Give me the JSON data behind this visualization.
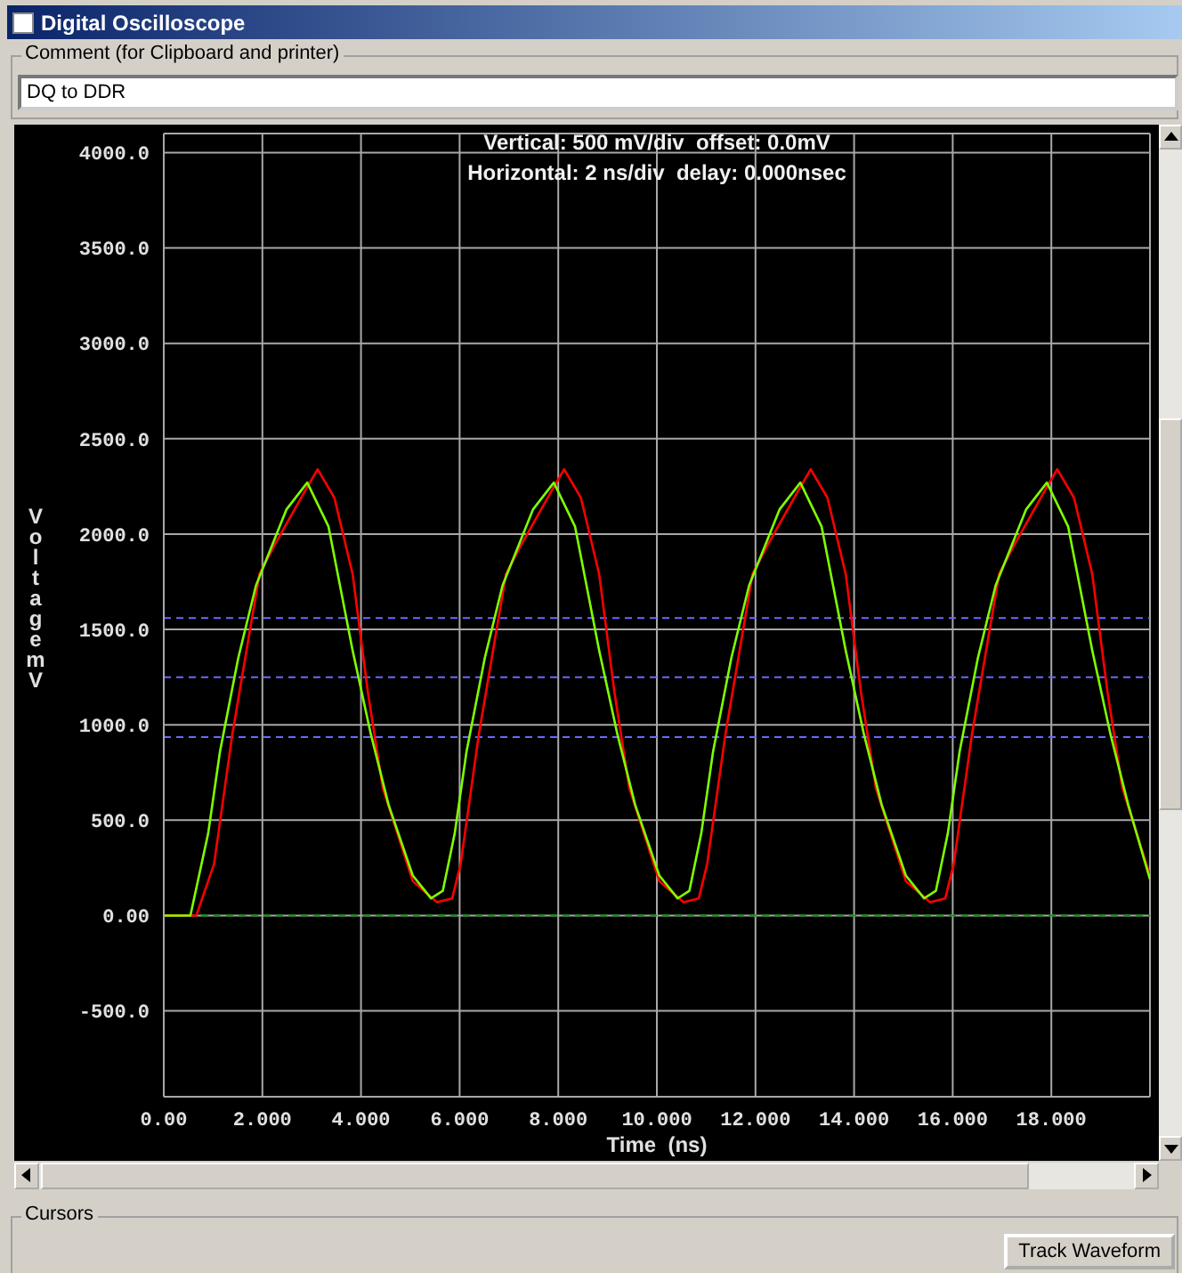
{
  "chart_data": {
    "type": "line",
    "title": "Digital Oscilloscope",
    "subtitle": "DQ to DDR",
    "xlabel": "Time  (ns)",
    "ylabel": "Voltage mV",
    "annotations": [
      "Comment (for Clipboard and printer)",
      "Vertical: 500 mV/div  offset: 0.0mV",
      "Horizontal: 2 ns/div  delay: 0.000nsec",
      "Cursors",
      "Track Waveform"
    ],
    "xlim": [
      0,
      20
    ],
    "ylim": [
      -950,
      4100
    ],
    "xticks": [
      {
        "value": 0,
        "label": "0.00"
      },
      {
        "value": 2,
        "label": "2.000"
      },
      {
        "value": 4,
        "label": "4.000"
      },
      {
        "value": 6,
        "label": "6.000"
      },
      {
        "value": 8,
        "label": "8.000"
      },
      {
        "value": 10,
        "label": "10.000"
      },
      {
        "value": 12,
        "label": "12.000"
      },
      {
        "value": 14,
        "label": "14.000"
      },
      {
        "value": 16,
        "label": "16.000"
      },
      {
        "value": 18,
        "label": "18.000"
      },
      {
        "value": 20,
        "label": null
      }
    ],
    "yticks": [
      {
        "value": -500,
        "label": "-500.0"
      },
      {
        "value": 0,
        "label": "0.00"
      },
      {
        "value": 500,
        "label": "500.0"
      },
      {
        "value": 1000,
        "label": "1000.0"
      },
      {
        "value": 1500,
        "label": "1500.0"
      },
      {
        "value": 2000,
        "label": "2000.0"
      },
      {
        "value": 2500,
        "label": "2500.0"
      },
      {
        "value": 3000,
        "label": "3000.0"
      },
      {
        "value": 3500,
        "label": "3500.0"
      },
      {
        "value": 4000,
        "label": "4000.0"
      }
    ],
    "grid": true,
    "marker": "none",
    "line_style": "solid",
    "ref_lines": [
      {
        "axis": "y",
        "value": 1560,
        "color": "#6a6aff",
        "line_style": "dashed"
      },
      {
        "axis": "y",
        "value": 1250,
        "color": "#6a6aff",
        "line_style": "dashed"
      },
      {
        "axis": "y",
        "value": 935,
        "color": "#6a6aff",
        "line_style": "dashed"
      },
      {
        "axis": "y",
        "value": 0,
        "color": "#00a000",
        "line_style": "dashed"
      }
    ],
    "series": [
      {
        "color": "#ff0000",
        "x": [
          0,
          0.66,
          1.02,
          1.39,
          1.94,
          2.24,
          2.85,
          3.12,
          3.46,
          3.83,
          4.14,
          4.44,
          5.05,
          5.54,
          5.85,
          6.02,
          6.39,
          6.94,
          7.24,
          7.85,
          8.12,
          8.46,
          8.83,
          9.14,
          9.44,
          10.05,
          10.54,
          10.85,
          11.02,
          11.39,
          11.94,
          12.24,
          12.85,
          13.12,
          13.46,
          13.83,
          14.14,
          14.44,
          15.05,
          15.54,
          15.85,
          16.02,
          16.39,
          16.94,
          17.24,
          17.85,
          18.12,
          18.46,
          18.83,
          19.14,
          19.44,
          20
        ],
        "values": [
          0,
          0,
          270,
          950,
          1790,
          1940,
          2220,
          2340,
          2190,
          1790,
          1170,
          670,
          180,
          70,
          90,
          270,
          950,
          1790,
          1940,
          2220,
          2340,
          2190,
          1790,
          1170,
          670,
          180,
          70,
          90,
          270,
          950,
          1790,
          1940,
          2220,
          2340,
          2190,
          1790,
          1170,
          670,
          180,
          70,
          90,
          270,
          950,
          1790,
          1940,
          2220,
          2340,
          2190,
          1790,
          1170,
          670,
          210
        ]
      },
      {
        "color": "#80ff00",
        "x": [
          0,
          0.54,
          0.9,
          1.14,
          1.51,
          1.87,
          2.49,
          2.91,
          3.34,
          3.83,
          4.2,
          4.56,
          5.05,
          5.42,
          5.66,
          5.9,
          6.14,
          6.51,
          6.87,
          7.49,
          7.91,
          8.34,
          8.83,
          9.2,
          9.56,
          10.05,
          10.42,
          10.66,
          10.9,
          11.14,
          11.51,
          11.87,
          12.49,
          12.91,
          13.34,
          13.83,
          14.2,
          14.56,
          15.05,
          15.42,
          15.66,
          15.9,
          16.14,
          16.51,
          16.87,
          17.49,
          17.91,
          18.34,
          18.83,
          19.2,
          19.56,
          20
        ],
        "values": [
          0,
          0,
          430,
          860,
          1350,
          1730,
          2130,
          2270,
          2040,
          1390,
          950,
          580,
          210,
          90,
          130,
          430,
          860,
          1350,
          1730,
          2130,
          2270,
          2040,
          1390,
          950,
          580,
          210,
          90,
          130,
          430,
          860,
          1350,
          1730,
          2130,
          2270,
          2040,
          1390,
          950,
          580,
          210,
          90,
          130,
          430,
          860,
          1350,
          1730,
          2130,
          2270,
          2040,
          1390,
          950,
          580,
          190
        ]
      }
    ]
  }
}
